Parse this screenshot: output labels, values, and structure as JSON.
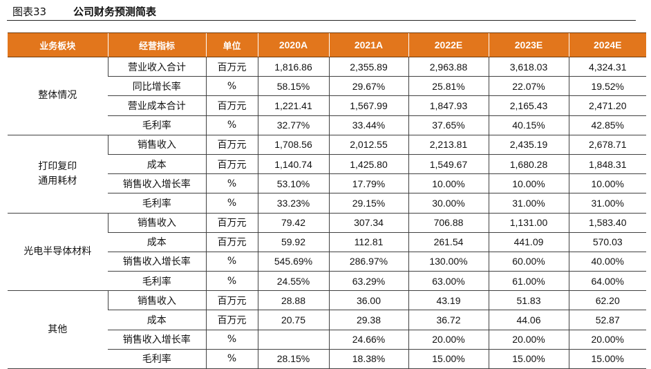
{
  "figure": {
    "label": "图表33",
    "title": "公司财务预测简表"
  },
  "table": {
    "headers": [
      "业务板块",
      "经营指标",
      "单位",
      "2020A",
      "2021A",
      "2022E",
      "2023E",
      "2024E"
    ],
    "groups": [
      {
        "name": "整体情况",
        "rows": [
          {
            "metric": "营业收入合计",
            "unit": "百万元",
            "values": [
              "1,816.86",
              "2,355.89",
              "2,963.88",
              "3,618.03",
              "4,324.31"
            ]
          },
          {
            "metric": "同比增长率",
            "unit": "%",
            "values": [
              "58.15%",
              "29.67%",
              "25.81%",
              "22.07%",
              "19.52%"
            ]
          },
          {
            "metric": "营业成本合计",
            "unit": "百万元",
            "values": [
              "1,221.41",
              "1,567.99",
              "1,847.93",
              "2,165.43",
              "2,471.20"
            ]
          },
          {
            "metric": "毛利率",
            "unit": "%",
            "values": [
              "32.77%",
              "33.44%",
              "37.65%",
              "40.15%",
              "42.85%"
            ]
          }
        ]
      },
      {
        "name": "打印复印通用耗材",
        "name_lines": [
          "打印复印",
          "通用耗材"
        ],
        "rows": [
          {
            "metric": "销售收入",
            "unit": "百万元",
            "values": [
              "1,708.56",
              "2,012.55",
              "2,213.81",
              "2,435.19",
              "2,678.71"
            ]
          },
          {
            "metric": "成本",
            "unit": "百万元",
            "values": [
              "1,140.74",
              "1,425.80",
              "1,549.67",
              "1,680.28",
              "1,848.31"
            ]
          },
          {
            "metric": "销售收入增长率",
            "unit": "%",
            "values": [
              "53.10%",
              "17.79%",
              "10.00%",
              "10.00%",
              "10.00%"
            ]
          },
          {
            "metric": "毛利率",
            "unit": "%",
            "values": [
              "33.23%",
              "29.15%",
              "30.00%",
              "31.00%",
              "31.00%"
            ]
          }
        ]
      },
      {
        "name": "光电半导体材料",
        "rows": [
          {
            "metric": "销售收入",
            "unit": "百万元",
            "values": [
              "79.42",
              "307.34",
              "706.88",
              "1,131.00",
              "1,583.40"
            ]
          },
          {
            "metric": "成本",
            "unit": "百万元",
            "values": [
              "59.92",
              "112.81",
              "261.54",
              "441.09",
              "570.03"
            ]
          },
          {
            "metric": "销售收入增长率",
            "unit": "%",
            "values": [
              "545.69%",
              "286.97%",
              "130.00%",
              "60.00%",
              "40.00%"
            ]
          },
          {
            "metric": "毛利率",
            "unit": "%",
            "values": [
              "24.55%",
              "63.29%",
              "63.00%",
              "61.00%",
              "64.00%"
            ]
          }
        ]
      },
      {
        "name": "其他",
        "rows": [
          {
            "metric": "销售收入",
            "unit": "百万元",
            "values": [
              "28.88",
              "36.00",
              "43.19",
              "51.83",
              "62.20"
            ]
          },
          {
            "metric": "成本",
            "unit": "百万元",
            "values": [
              "20.75",
              "29.38",
              "36.72",
              "44.06",
              "52.87"
            ]
          },
          {
            "metric": "销售收入增长率",
            "unit": "%",
            "values": [
              "",
              "24.66%",
              "20.00%",
              "20.00%",
              "20.00%"
            ]
          },
          {
            "metric": "毛利率",
            "unit": "%",
            "values": [
              "28.15%",
              "18.38%",
              "15.00%",
              "15.00%",
              "15.00%"
            ]
          }
        ]
      }
    ]
  },
  "colors": {
    "header_bg": "#e2761c",
    "header_text": "#ffffff",
    "header_rule": "#6e3a0c",
    "grid": "#404040",
    "text": "#111111"
  }
}
